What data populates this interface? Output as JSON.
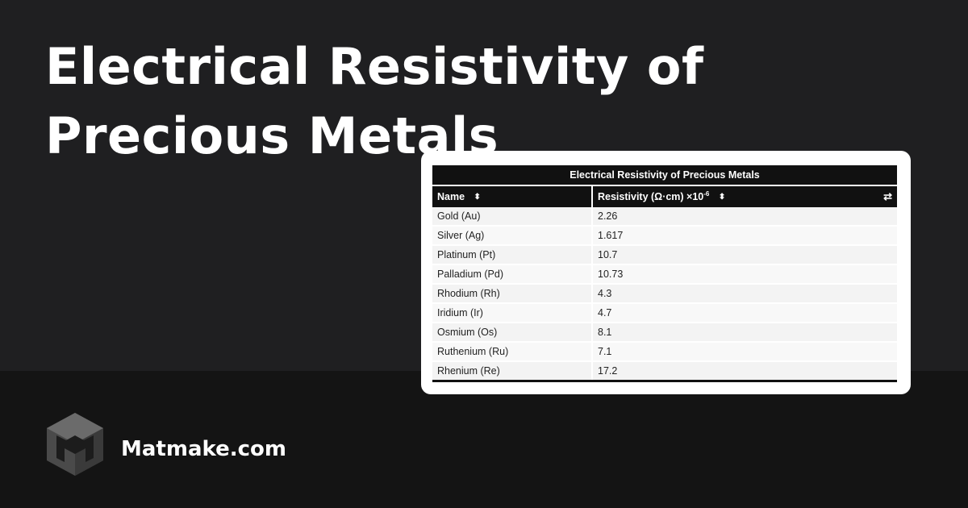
{
  "title": "Electrical Resistivity of Precious Metals",
  "table": {
    "caption": "Electrical Resistivity of Precious Metals",
    "headers": {
      "name": "Name",
      "resistivity": "Resistivity (Ω·cm) ×10",
      "resistivity_exp": "-6"
    },
    "icons": {
      "sort": "sort-icon",
      "swap": "swap-icon"
    },
    "rows": [
      {
        "name": "Gold (Au)",
        "value": "2.26"
      },
      {
        "name": "Silver (Ag)",
        "value": "1.617"
      },
      {
        "name": "Platinum (Pt)",
        "value": "10.7"
      },
      {
        "name": "Palladium (Pd)",
        "value": "10.73"
      },
      {
        "name": "Rhodium (Rh)",
        "value": "4.3"
      },
      {
        "name": "Iridium (Ir)",
        "value": "4.7"
      },
      {
        "name": "Osmium (Os)",
        "value": "8.1"
      },
      {
        "name": "Ruthenium (Ru)",
        "value": "7.1"
      },
      {
        "name": "Rhenium (Re)",
        "value": "17.2"
      }
    ]
  },
  "brand": {
    "name": "Matmake.com",
    "logo_icon": "matmake-cube-logo-icon"
  },
  "colors": {
    "background_top": "#1f1f21",
    "background_bottom": "#141414",
    "header": "#111111",
    "text_light": "#ffffff"
  }
}
